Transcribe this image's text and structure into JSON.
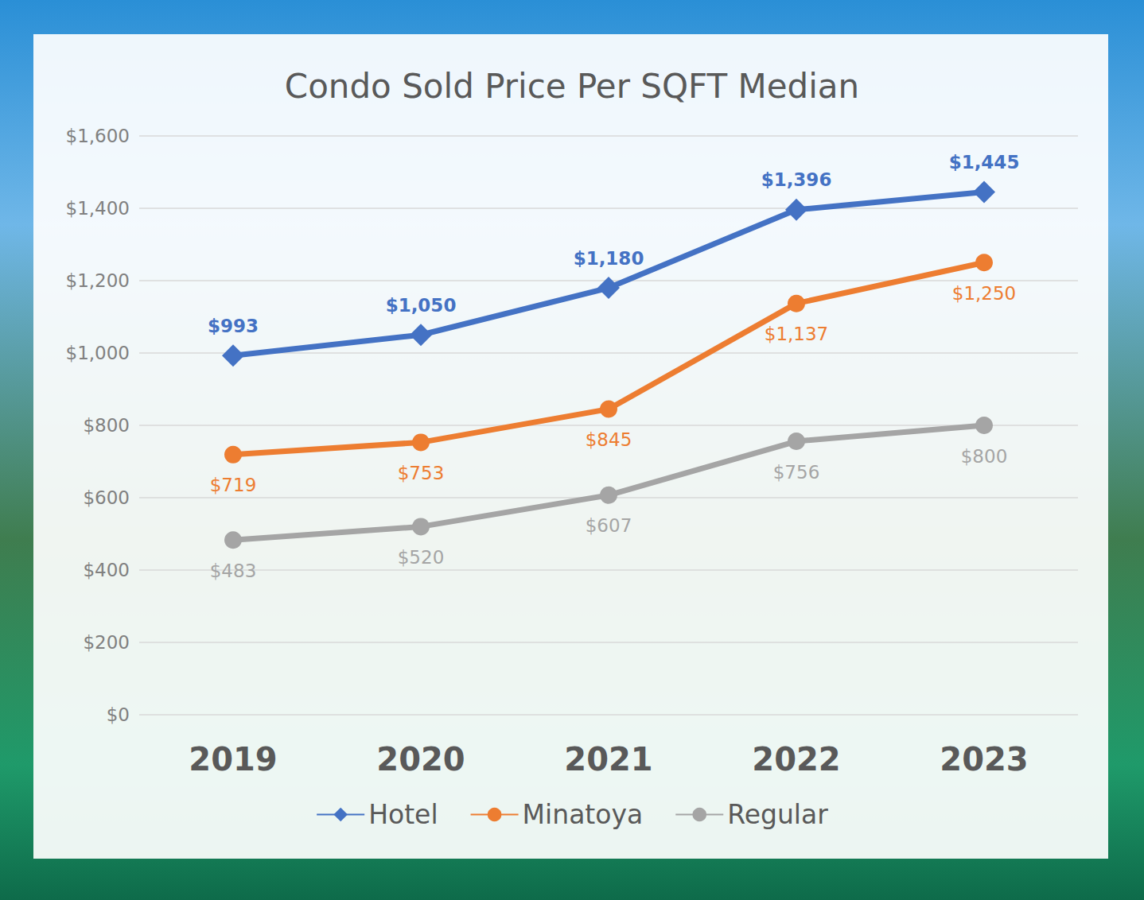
{
  "chart_data": {
    "type": "line",
    "title": "Condo Sold Price Per SQFT Median",
    "categories": [
      "2019",
      "2020",
      "2021",
      "2022",
      "2023"
    ],
    "series": [
      {
        "name": "Hotel",
        "color": "#4472c4",
        "marker": "diamond",
        "values": [
          993,
          1050,
          1180,
          1396,
          1445
        ],
        "value_labels": [
          "$993",
          "$1,050",
          "$1,180",
          "$1,396",
          "$1,445"
        ]
      },
      {
        "name": "Minatoya",
        "color": "#ed7d31",
        "marker": "circle",
        "values": [
          719,
          753,
          845,
          1137,
          1250
        ],
        "value_labels": [
          "$719",
          "$753",
          "$845",
          "$1,137",
          "$1,250"
        ]
      },
      {
        "name": "Regular",
        "color": "#a5a5a5",
        "marker": "circle",
        "values": [
          483,
          520,
          607,
          756,
          800
        ],
        "value_labels": [
          "$483",
          "$520",
          "$607",
          "$756",
          "$800"
        ]
      }
    ],
    "ylim": [
      0,
      1600
    ],
    "yticks": [
      {
        "value": 0,
        "label": "$0"
      },
      {
        "value": 200,
        "label": "$200"
      },
      {
        "value": 400,
        "label": "$400"
      },
      {
        "value": 600,
        "label": "$600"
      },
      {
        "value": 800,
        "label": "$800"
      },
      {
        "value": 1000,
        "label": "$1,000"
      },
      {
        "value": 1200,
        "label": "$1,200"
      },
      {
        "value": 1400,
        "label": "$1,400"
      },
      {
        "value": 1600,
        "label": "$1,600"
      }
    ],
    "grid": true,
    "legend": "bottom",
    "data_labels": true
  }
}
